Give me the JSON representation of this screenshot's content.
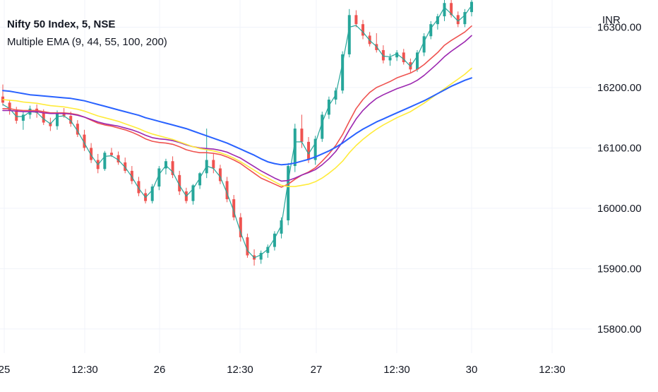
{
  "header": {
    "title": "Nifty 50 Index, 5, NSE",
    "indicator": "Multiple EMA (9, 44, 55, 100, 200)"
  },
  "price_axis": {
    "currency": "INR"
  },
  "chart_data": {
    "type": "line",
    "title": "Nifty 50 Index, 5, NSE",
    "xlabel": "",
    "ylabel": "INR",
    "ylim": [
      15760,
      16345
    ],
    "x_ticks": [
      "25",
      "12:30",
      "26",
      "12:30",
      "27",
      "12:30",
      "30",
      "12:30"
    ],
    "y_ticks": [
      15800,
      15900,
      16000,
      16100,
      16200,
      16300
    ],
    "y_tick_labels": [
      "15800.00",
      "15900.00",
      "16000.00",
      "16100.00",
      "16200.00",
      "16300.00"
    ],
    "grid": true,
    "legend": "none",
    "candles": {
      "up_color": "#26a69a",
      "down_color": "#ef5350",
      "ohlc": [
        [
          16185,
          16205,
          16170,
          16175
        ],
        [
          16175,
          16180,
          16155,
          16162
        ],
        [
          16162,
          16168,
          16140,
          16145
        ],
        [
          16145,
          16160,
          16130,
          16155
        ],
        [
          16155,
          16170,
          16148,
          16165
        ],
        [
          16165,
          16172,
          16150,
          16158
        ],
        [
          16158,
          16164,
          16138,
          16142
        ],
        [
          16142,
          16150,
          16128,
          16136
        ],
        [
          16136,
          16162,
          16130,
          16158
        ],
        [
          16158,
          16166,
          16150,
          16153
        ],
        [
          16153,
          16160,
          16135,
          16140
        ],
        [
          16140,
          16146,
          16118,
          16122
        ],
        [
          16122,
          16130,
          16095,
          16100
        ],
        [
          16100,
          16108,
          16075,
          16080
        ],
        [
          16080,
          16090,
          16058,
          16065
        ],
        [
          16065,
          16095,
          16062,
          16092
        ],
        [
          16092,
          16100,
          16085,
          16088
        ],
        [
          16088,
          16094,
          16072,
          16076
        ],
        [
          16076,
          16084,
          16058,
          16062
        ],
        [
          16062,
          16070,
          16040,
          16045
        ],
        [
          16045,
          16052,
          16020,
          16025
        ],
        [
          16025,
          16032,
          16008,
          16012
        ],
        [
          16012,
          16040,
          16008,
          16036
        ],
        [
          16036,
          16070,
          16030,
          16066
        ],
        [
          16066,
          16082,
          16056,
          16078
        ],
        [
          16078,
          16086,
          16050,
          16055
        ],
        [
          16055,
          16062,
          16022,
          16028
        ],
        [
          16028,
          16034,
          16008,
          16012
        ],
        [
          16012,
          16040,
          16006,
          16038
        ],
        [
          16038,
          16060,
          16032,
          16058
        ],
        [
          16058,
          16132,
          16050,
          16080
        ],
        [
          16080,
          16090,
          16058,
          16066
        ],
        [
          16066,
          16072,
          16040,
          16045
        ],
        [
          16045,
          16052,
          16010,
          16015
        ],
        [
          16015,
          16022,
          15980,
          15985
        ],
        [
          15985,
          15992,
          15945,
          15952
        ],
        [
          15952,
          15958,
          15918,
          15922
        ],
        [
          15922,
          15932,
          15905,
          15915
        ],
        [
          15915,
          15930,
          15908,
          15926
        ],
        [
          15926,
          15940,
          15918,
          15936
        ],
        [
          15936,
          15962,
          15930,
          15958
        ],
        [
          15958,
          15985,
          15950,
          15980
        ],
        [
          15980,
          16075,
          15972,
          16070
        ],
        [
          16070,
          16140,
          16060,
          16132
        ],
        [
          16132,
          16155,
          16100,
          16110
        ],
        [
          16110,
          16118,
          16075,
          16080
        ],
        [
          16080,
          16120,
          16072,
          16115
        ],
        [
          16115,
          16160,
          16110,
          16155
        ],
        [
          16155,
          16185,
          16148,
          16180
        ],
        [
          16180,
          16200,
          16172,
          16195
        ],
        [
          16195,
          16260,
          16190,
          16255
        ],
        [
          16255,
          16330,
          16250,
          16320
        ],
        [
          16320,
          16328,
          16300,
          16305
        ],
        [
          16305,
          16312,
          16280,
          16286
        ],
        [
          16286,
          16292,
          16268,
          16272
        ],
        [
          16272,
          16290,
          16258,
          16262
        ],
        [
          16262,
          16270,
          16240,
          16245
        ],
        [
          16245,
          16256,
          16236,
          16250
        ],
        [
          16250,
          16262,
          16244,
          16258
        ],
        [
          16258,
          16264,
          16238,
          16242
        ],
        [
          16242,
          16248,
          16225,
          16230
        ],
        [
          16230,
          16262,
          16226,
          16258
        ],
        [
          16258,
          16290,
          16252,
          16285
        ],
        [
          16285,
          16310,
          16280,
          16305
        ],
        [
          16305,
          16322,
          16296,
          16318
        ],
        [
          16318,
          16350,
          16310,
          16340
        ],
        [
          16340,
          16346,
          16316,
          16320
        ],
        [
          16320,
          16326,
          16300,
          16305
        ],
        [
          16305,
          16330,
          16300,
          16325
        ],
        [
          16325,
          16348,
          16318,
          16342
        ]
      ]
    },
    "series": [
      {
        "color": "#26a69a",
        "values": [
          16172,
          16165,
          16152,
          16152,
          16160,
          16159,
          16148,
          16140,
          16152,
          16153,
          16145,
          16128,
          16108,
          16088,
          16072,
          16086,
          16087,
          16080,
          16068,
          16052,
          16033,
          16018,
          16030,
          16056,
          16071,
          16060,
          16038,
          16020,
          16032,
          16050,
          16070,
          16066,
          16052,
          16025,
          15995,
          15960,
          15930,
          15918,
          15923,
          15932,
          15950,
          15972,
          16045,
          16110,
          16110,
          16090,
          16108,
          16142,
          16170,
          16188,
          16240,
          16300,
          16303,
          16292,
          16278,
          16268,
          16252,
          16251,
          16256,
          16247,
          16235,
          16252,
          16276,
          16298,
          16313,
          16333,
          16322,
          16310,
          16320,
          16336
        ]
      },
      {
        "color": "#ef5350",
        "values": [
          16165,
          16165,
          16163,
          16162,
          16162,
          16162,
          16160,
          16158,
          16158,
          16158,
          16157,
          16155,
          16151,
          16146,
          16141,
          16138,
          16136,
          16133,
          16130,
          16126,
          16121,
          16115,
          16111,
          16109,
          16108,
          16106,
          16102,
          16097,
          16094,
          16092,
          16092,
          16091,
          16089,
          16085,
          16080,
          16074,
          16066,
          16058,
          16050,
          16045,
          16040,
          16035,
          16040,
          16048,
          16055,
          16060,
          16067,
          16078,
          16090,
          16104,
          16122,
          16144,
          16165,
          16180,
          16192,
          16200,
          16205,
          16210,
          16216,
          16220,
          16224,
          16230,
          16238,
          16248,
          16258,
          16270,
          16278,
          16285,
          16292,
          16302
        ]
      },
      {
        "color": "#9c27b0",
        "values": [
          16162,
          16162,
          16161,
          16160,
          16160,
          16160,
          16158,
          16157,
          16157,
          16157,
          16156,
          16154,
          16151,
          16147,
          16143,
          16140,
          16138,
          16136,
          16133,
          16130,
          16126,
          16121,
          16117,
          16115,
          16114,
          16112,
          16109,
          16105,
          16102,
          16100,
          16099,
          16098,
          16096,
          16093,
          16088,
          16083,
          16076,
          16069,
          16062,
          16056,
          16050,
          16045,
          16046,
          16050,
          16055,
          16059,
          16064,
          16072,
          16082,
          16094,
          16110,
          16130,
          16148,
          16162,
          16173,
          16182,
          16188,
          16193,
          16198,
          16202,
          16206,
          16212,
          16220,
          16230,
          16240,
          16251,
          16260,
          16268,
          16276,
          16286
        ]
      },
      {
        "color": "#ffeb3b",
        "values": [
          16180,
          16179,
          16178,
          16176,
          16175,
          16174,
          16172,
          16170,
          16169,
          16168,
          16166,
          16164,
          16161,
          16157,
          16153,
          16150,
          16147,
          16144,
          16140,
          16136,
          16132,
          16127,
          16123,
          16120,
          16117,
          16114,
          16110,
          16106,
          16102,
          16099,
          16097,
          16095,
          16092,
          16088,
          16083,
          16077,
          16070,
          16063,
          16056,
          16050,
          16044,
          16038,
          16036,
          16036,
          16038,
          16040,
          16044,
          16050,
          16058,
          16067,
          16078,
          16092,
          16104,
          16114,
          16123,
          16131,
          16138,
          16144,
          16150,
          16155,
          16160,
          16167,
          16174,
          16182,
          16190,
          16198,
          16206,
          16214,
          16222,
          16232
        ]
      },
      {
        "color": "#2962ff",
        "values": [
          16195,
          16194,
          16192,
          16190,
          16188,
          16187,
          16186,
          16185,
          16184,
          16183,
          16182,
          16180,
          16178,
          16175,
          16172,
          16169,
          16166,
          16163,
          16160,
          16157,
          16154,
          16150,
          16147,
          16144,
          16141,
          16138,
          16135,
          16132,
          16128,
          16124,
          16120,
          16116,
          16112,
          16108,
          16103,
          16098,
          16093,
          16088,
          16082,
          16077,
          16074,
          16072,
          16073,
          16075,
          16078,
          16081,
          16085,
          16090,
          16095,
          16101,
          16108,
          16116,
          16124,
          16131,
          16137,
          16143,
          16148,
          16153,
          16158,
          16163,
          16168,
          16173,
          16178,
          16184,
          16190,
          16196,
          16202,
          16207,
          16212,
          16216
        ]
      }
    ]
  }
}
